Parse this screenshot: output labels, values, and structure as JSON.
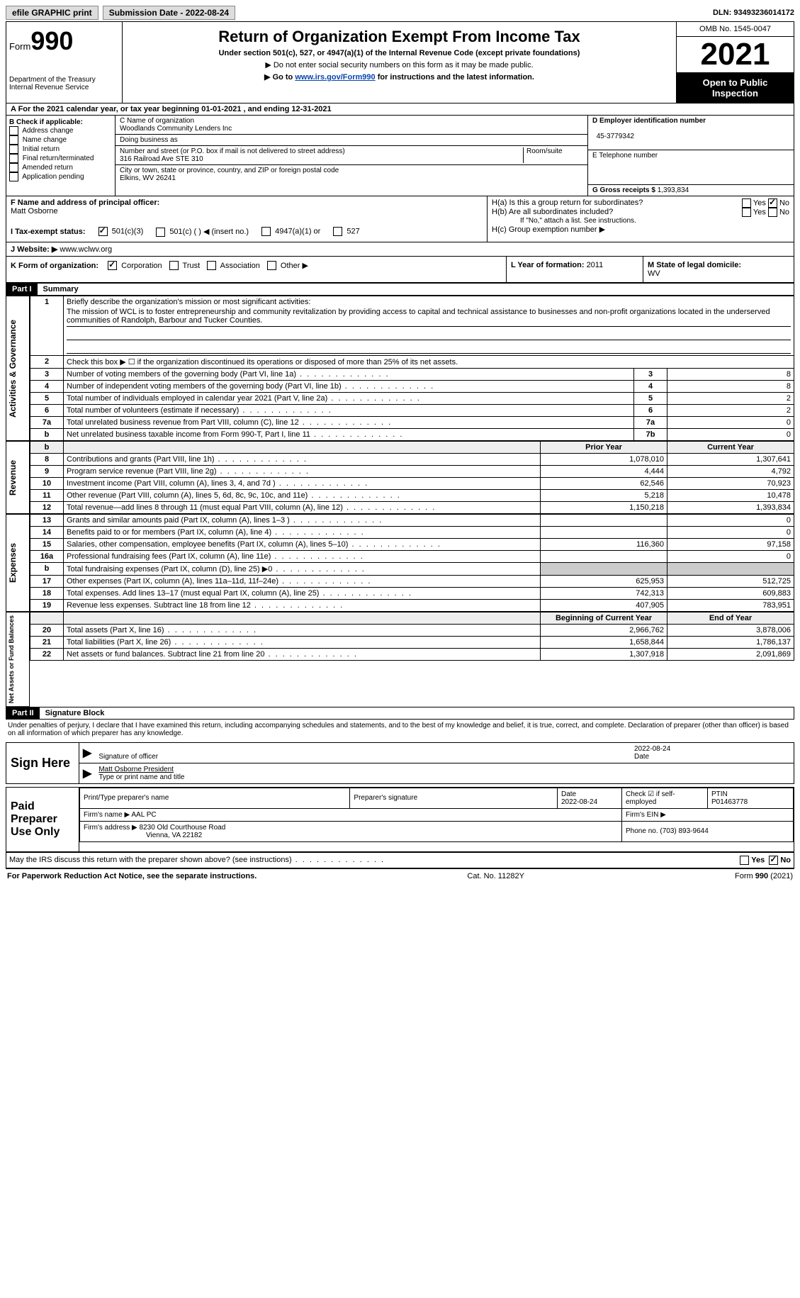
{
  "topbar": {
    "efile": "efile GRAPHIC print",
    "submission_label": "Submission Date - ",
    "submission_date": "2022-08-24",
    "dln_label": "DLN: ",
    "dln": "93493236014172"
  },
  "header": {
    "form_word": "Form",
    "form_num": "990",
    "dept": "Department of the Treasury",
    "irs": "Internal Revenue Service",
    "title": "Return of Organization Exempt From Income Tax",
    "subtitle": "Under section 501(c), 527, or 4947(a)(1) of the Internal Revenue Code (except private foundations)",
    "note1": "▶ Do not enter social security numbers on this form as it may be made public.",
    "note2_pre": "▶ Go to ",
    "note2_link": "www.irs.gov/Form990",
    "note2_post": " for instructions and the latest information.",
    "omb": "OMB No. 1545-0047",
    "year": "2021",
    "inspect": "Open to Public Inspection"
  },
  "section_a": {
    "text_pre": "A For the 2021 calendar year, or tax year beginning ",
    "begin": "01-01-2021",
    "mid": " , and ending ",
    "end": "12-31-2021"
  },
  "col_b": {
    "title": "B Check if applicable:",
    "items": [
      "Address change",
      "Name change",
      "Initial return",
      "Final return/terminated",
      "Amended return",
      "Application pending"
    ]
  },
  "col_c": {
    "name_label": "C Name of organization",
    "name": "Woodlands Community Lenders Inc",
    "dba_label": "Doing business as",
    "addr_label": "Number and street (or P.O. box if mail is not delivered to street address)",
    "room_label": "Room/suite",
    "addr": "316 Railroad Ave STE 310",
    "city_label": "City or town, state or province, country, and ZIP or foreign postal code",
    "city": "Elkins, WV  26241"
  },
  "col_d": {
    "ein_label": "D Employer identification number",
    "ein": "45-3779342",
    "phone_label": "E Telephone number",
    "gross_label": "G Gross receipts $ ",
    "gross": "1,393,834"
  },
  "fgh": {
    "f_label": "F Name and address of principal officer:",
    "f_name": "Matt Osborne",
    "ha": "H(a)  Is this a group return for subordinates?",
    "hb": "H(b)  Are all subordinates included?",
    "hb_note": "If \"No,\" attach a list. See instructions.",
    "hc": "H(c)  Group exemption number ▶",
    "yes": "Yes",
    "no": "No"
  },
  "i": {
    "label": "I    Tax-exempt status:",
    "a": "501(c)(3)",
    "b": "501(c) (  ) ◀ (insert no.)",
    "c": "4947(a)(1) or",
    "d": "527"
  },
  "j": {
    "label": "J   Website: ▶",
    "value": " www.wclwv.org"
  },
  "k": {
    "label": "K Form of organization:",
    "opts": [
      "Corporation",
      "Trust",
      "Association",
      "Other ▶"
    ],
    "l_label": "L Year of formation: ",
    "l_val": "2011",
    "m_label": "M State of legal domicile: ",
    "m_val": "WV"
  },
  "part1": {
    "hdr": "Part I",
    "title": "Summary",
    "q1_label": "1",
    "q1_text": "Briefly describe the organization's mission or most significant activities:",
    "mission": "The mission of WCL is to foster entrepreneurship and community revitalization by providing access to capital and technical assistance to businesses and non-profit organizations located in the underserved communities of Randolph, Barbour and Tucker Counties.",
    "q2": "Check this box ▶ ☐ if the organization discontinued its operations or disposed of more than 25% of its net assets.",
    "side_ag": "Activities & Governance",
    "side_rev": "Revenue",
    "side_exp": "Expenses",
    "side_net": "Net Assets or Fund Balances",
    "rows_ag": [
      {
        "n": "3",
        "d": "Number of voting members of the governing body (Part VI, line 1a)",
        "box": "3",
        "v": "8"
      },
      {
        "n": "4",
        "d": "Number of independent voting members of the governing body (Part VI, line 1b)",
        "box": "4",
        "v": "8"
      },
      {
        "n": "5",
        "d": "Total number of individuals employed in calendar year 2021 (Part V, line 2a)",
        "box": "5",
        "v": "2"
      },
      {
        "n": "6",
        "d": "Total number of volunteers (estimate if necessary)",
        "box": "6",
        "v": "2"
      },
      {
        "n": "7a",
        "d": "Total unrelated business revenue from Part VIII, column (C), line 12",
        "box": "7a",
        "v": "0"
      },
      {
        "n": "b",
        "d": "Net unrelated business taxable income from Form 990-T, Part I, line 11",
        "box": "7b",
        "v": "0"
      }
    ],
    "col_prior": "Prior Year",
    "col_current": "Current Year",
    "rows_rev": [
      {
        "n": "8",
        "d": "Contributions and grants (Part VIII, line 1h)",
        "p": "1,078,010",
        "c": "1,307,641"
      },
      {
        "n": "9",
        "d": "Program service revenue (Part VIII, line 2g)",
        "p": "4,444",
        "c": "4,792"
      },
      {
        "n": "10",
        "d": "Investment income (Part VIII, column (A), lines 3, 4, and 7d )",
        "p": "62,546",
        "c": "70,923"
      },
      {
        "n": "11",
        "d": "Other revenue (Part VIII, column (A), lines 5, 6d, 8c, 9c, 10c, and 11e)",
        "p": "5,218",
        "c": "10,478"
      },
      {
        "n": "12",
        "d": "Total revenue—add lines 8 through 11 (must equal Part VIII, column (A), line 12)",
        "p": "1,150,218",
        "c": "1,393,834"
      }
    ],
    "rows_exp": [
      {
        "n": "13",
        "d": "Grants and similar amounts paid (Part IX, column (A), lines 1–3 )",
        "p": "",
        "c": "0"
      },
      {
        "n": "14",
        "d": "Benefits paid to or for members (Part IX, column (A), line 4)",
        "p": "",
        "c": "0"
      },
      {
        "n": "15",
        "d": "Salaries, other compensation, employee benefits (Part IX, column (A), lines 5–10)",
        "p": "116,360",
        "c": "97,158"
      },
      {
        "n": "16a",
        "d": "Professional fundraising fees (Part IX, column (A), line 11e)",
        "p": "",
        "c": "0"
      },
      {
        "n": "b",
        "d": "Total fundraising expenses (Part IX, column (D), line 25) ▶0",
        "p": "—shade—",
        "c": "—shade—"
      },
      {
        "n": "17",
        "d": "Other expenses (Part IX, column (A), lines 11a–11d, 11f–24e)",
        "p": "625,953",
        "c": "512,725"
      },
      {
        "n": "18",
        "d": "Total expenses. Add lines 13–17 (must equal Part IX, column (A), line 25)",
        "p": "742,313",
        "c": "609,883"
      },
      {
        "n": "19",
        "d": "Revenue less expenses. Subtract line 18 from line 12",
        "p": "407,905",
        "c": "783,951"
      }
    ],
    "col_begin": "Beginning of Current Year",
    "col_end": "End of Year",
    "rows_net": [
      {
        "n": "20",
        "d": "Total assets (Part X, line 16)",
        "p": "2,966,762",
        "c": "3,878,006"
      },
      {
        "n": "21",
        "d": "Total liabilities (Part X, line 26)",
        "p": "1,658,844",
        "c": "1,786,137"
      },
      {
        "n": "22",
        "d": "Net assets or fund balances. Subtract line 21 from line 20",
        "p": "1,307,918",
        "c": "2,091,869"
      }
    ]
  },
  "part2": {
    "hdr": "Part II",
    "title": "Signature Block",
    "decl": "Under penalties of perjury, I declare that I have examined this return, including accompanying schedules and statements, and to the best of my knowledge and belief, it is true, correct, and complete. Declaration of preparer (other than officer) is based on all information of which preparer has any knowledge.",
    "sign_here": "Sign Here",
    "sig_officer": "Signature of officer",
    "sig_date": "2022-08-24",
    "date_lbl": "Date",
    "name_title": "Matt Osborne  President",
    "name_title_lbl": "Type or print name and title",
    "paid": "Paid Preparer Use Only",
    "pp_name_lbl": "Print/Type preparer's name",
    "pp_sig_lbl": "Preparer's signature",
    "pp_date_lbl": "Date",
    "pp_date": "2022-08-24",
    "pp_check": "Check ☑ if self-employed",
    "ptin_lbl": "PTIN",
    "ptin": "P01463778",
    "firm_name_lbl": "Firm's name    ▶ ",
    "firm_name": "AAL PC",
    "firm_ein_lbl": "Firm's EIN ▶",
    "firm_addr_lbl": "Firm's address ▶ ",
    "firm_addr1": "8230 Old Courthouse Road",
    "firm_addr2": "Vienna, VA  22182",
    "firm_phone_lbl": "Phone no. ",
    "firm_phone": "(703) 893-9644",
    "discuss": "May the IRS discuss this return with the preparer shown above? (see instructions)"
  },
  "footer": {
    "left": "For Paperwork Reduction Act Notice, see the separate instructions.",
    "mid": "Cat. No. 11282Y",
    "right": "Form 990 (2021)"
  }
}
